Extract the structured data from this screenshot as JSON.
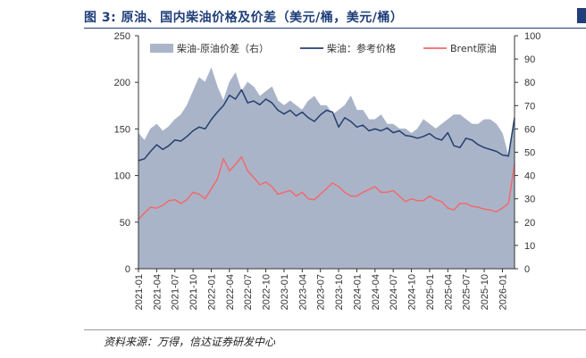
{
  "figure": {
    "title": "图 3:  原油、国内柴油价格及价差（美元/桶，美元/桶）",
    "source": "资料来源：万得，信达证券研发中心"
  },
  "colors": {
    "area": "#aab4c9",
    "diesel": "#24406e",
    "brent": "#f26a6a",
    "title": "#1f3e7a"
  },
  "chart_data": {
    "type": "line",
    "left_axis": {
      "ylim": [
        0,
        250
      ],
      "ticks": [
        "0",
        "50",
        "100",
        "150",
        "200",
        "250"
      ]
    },
    "right_axis": {
      "ylim": [
        0,
        100
      ],
      "ticks": [
        "0",
        "10",
        "20",
        "30",
        "40",
        "50",
        "60",
        "70",
        "80",
        "90",
        "100"
      ]
    },
    "x_range": [
      "2021-01",
      "2026-03"
    ],
    "x_ticks": [
      "2021-01",
      "2021-04",
      "2021-07",
      "2021-10",
      "2022-01",
      "2022-04",
      "2022-07",
      "2022-10",
      "2023-01",
      "2023-04",
      "2023-07",
      "2023-10",
      "2024-01",
      "2024-04",
      "2024-07",
      "2024-10",
      "2025-01",
      "2025-04",
      "2025-07",
      "2025-10",
      "2026-01"
    ],
    "legend_position": "top",
    "series": [
      {
        "name": "柴油-原油价差（右）",
        "kind": "area",
        "axis": "right",
        "x": [
          "2021-01",
          "2021-02",
          "2021-03",
          "2021-04",
          "2021-05",
          "2021-06",
          "2021-07",
          "2021-08",
          "2021-09",
          "2021-10",
          "2021-11",
          "2021-12",
          "2022-01",
          "2022-02",
          "2022-03",
          "2022-04",
          "2022-05",
          "2022-06",
          "2022-07",
          "2022-08",
          "2022-09",
          "2022-10",
          "2022-11",
          "2022-12",
          "2023-01",
          "2023-02",
          "2023-03",
          "2023-04",
          "2023-05",
          "2023-06",
          "2023-07",
          "2023-08",
          "2023-09",
          "2023-10",
          "2023-11",
          "2023-12",
          "2024-01",
          "2024-02",
          "2024-03",
          "2024-04",
          "2024-05",
          "2024-06",
          "2024-07",
          "2024-08",
          "2024-09",
          "2024-10",
          "2024-11",
          "2024-12",
          "2025-01",
          "2025-02",
          "2025-03",
          "2025-04",
          "2025-05",
          "2025-06",
          "2025-07",
          "2025-08",
          "2025-09",
          "2025-10",
          "2025-11",
          "2025-12",
          "2026-01",
          "2026-02",
          "2026-03"
        ],
        "values": [
          58,
          55,
          60,
          62,
          59,
          61,
          64,
          66,
          70,
          76,
          82,
          80,
          86,
          78,
          72,
          80,
          84,
          76,
          80,
          78,
          74,
          76,
          78,
          72,
          70,
          72,
          70,
          68,
          72,
          74,
          70,
          70,
          66,
          68,
          70,
          74,
          68,
          68,
          64,
          64,
          66,
          62,
          62,
          60,
          60,
          58,
          60,
          64,
          62,
          60,
          62,
          64,
          66,
          66,
          64,
          62,
          62,
          64,
          64,
          62,
          58,
          48,
          62
        ]
      },
      {
        "name": "柴油：参考价格",
        "kind": "line",
        "axis": "left",
        "x": [
          "2021-01",
          "2021-02",
          "2021-03",
          "2021-04",
          "2021-05",
          "2021-06",
          "2021-07",
          "2021-08",
          "2021-09",
          "2021-10",
          "2021-11",
          "2021-12",
          "2022-01",
          "2022-02",
          "2022-03",
          "2022-04",
          "2022-05",
          "2022-06",
          "2022-07",
          "2022-08",
          "2022-09",
          "2022-10",
          "2022-11",
          "2022-12",
          "2023-01",
          "2023-02",
          "2023-03",
          "2023-04",
          "2023-05",
          "2023-06",
          "2023-07",
          "2023-08",
          "2023-09",
          "2023-10",
          "2023-11",
          "2023-12",
          "2024-01",
          "2024-02",
          "2024-03",
          "2024-04",
          "2024-05",
          "2024-06",
          "2024-07",
          "2024-08",
          "2024-09",
          "2024-10",
          "2024-11",
          "2024-12",
          "2025-01",
          "2025-02",
          "2025-03",
          "2025-04",
          "2025-05",
          "2025-06",
          "2025-07",
          "2025-08",
          "2025-09",
          "2025-10",
          "2025-11",
          "2025-12",
          "2026-01",
          "2026-02",
          "2026-03"
        ],
        "values": [
          116,
          118,
          126,
          133,
          128,
          132,
          138,
          137,
          142,
          148,
          152,
          150,
          160,
          168,
          175,
          186,
          182,
          192,
          178,
          180,
          176,
          182,
          178,
          170,
          166,
          170,
          164,
          168,
          162,
          158,
          165,
          170,
          168,
          152,
          162,
          158,
          152,
          154,
          148,
          150,
          148,
          151,
          146,
          148,
          143,
          142,
          140,
          142,
          145,
          140,
          138,
          146,
          132,
          130,
          140,
          138,
          133,
          130,
          128,
          126,
          122,
          121,
          162
        ]
      },
      {
        "name": "Brent原油",
        "kind": "line",
        "axis": "left",
        "x": [
          "2021-01",
          "2021-02",
          "2021-03",
          "2021-04",
          "2021-05",
          "2021-06",
          "2021-07",
          "2021-08",
          "2021-09",
          "2021-10",
          "2021-11",
          "2021-12",
          "2022-01",
          "2022-02",
          "2022-03",
          "2022-04",
          "2022-05",
          "2022-06",
          "2022-07",
          "2022-08",
          "2022-09",
          "2022-10",
          "2022-11",
          "2022-12",
          "2023-01",
          "2023-02",
          "2023-03",
          "2023-04",
          "2023-05",
          "2023-06",
          "2023-07",
          "2023-08",
          "2023-09",
          "2023-10",
          "2023-11",
          "2023-12",
          "2024-01",
          "2024-02",
          "2024-03",
          "2024-04",
          "2024-05",
          "2024-06",
          "2024-07",
          "2024-08",
          "2024-09",
          "2024-10",
          "2024-11",
          "2024-12",
          "2025-01",
          "2025-02",
          "2025-03",
          "2025-04",
          "2025-05",
          "2025-06",
          "2025-07",
          "2025-08",
          "2025-09",
          "2025-10",
          "2025-11",
          "2025-12",
          "2026-01",
          "2026-02",
          "2026-03"
        ],
        "values": [
          53,
          60,
          66,
          65,
          68,
          73,
          74,
          70,
          74,
          82,
          80,
          75,
          86,
          96,
          118,
          105,
          112,
          120,
          105,
          98,
          90,
          93,
          88,
          80,
          82,
          84,
          78,
          82,
          75,
          74,
          80,
          86,
          92,
          88,
          82,
          78,
          78,
          82,
          85,
          88,
          82,
          82,
          84,
          78,
          72,
          75,
          73,
          73,
          78,
          74,
          72,
          65,
          63,
          70,
          70,
          67,
          66,
          64,
          63,
          61,
          65,
          70,
          112
        ]
      }
    ]
  }
}
